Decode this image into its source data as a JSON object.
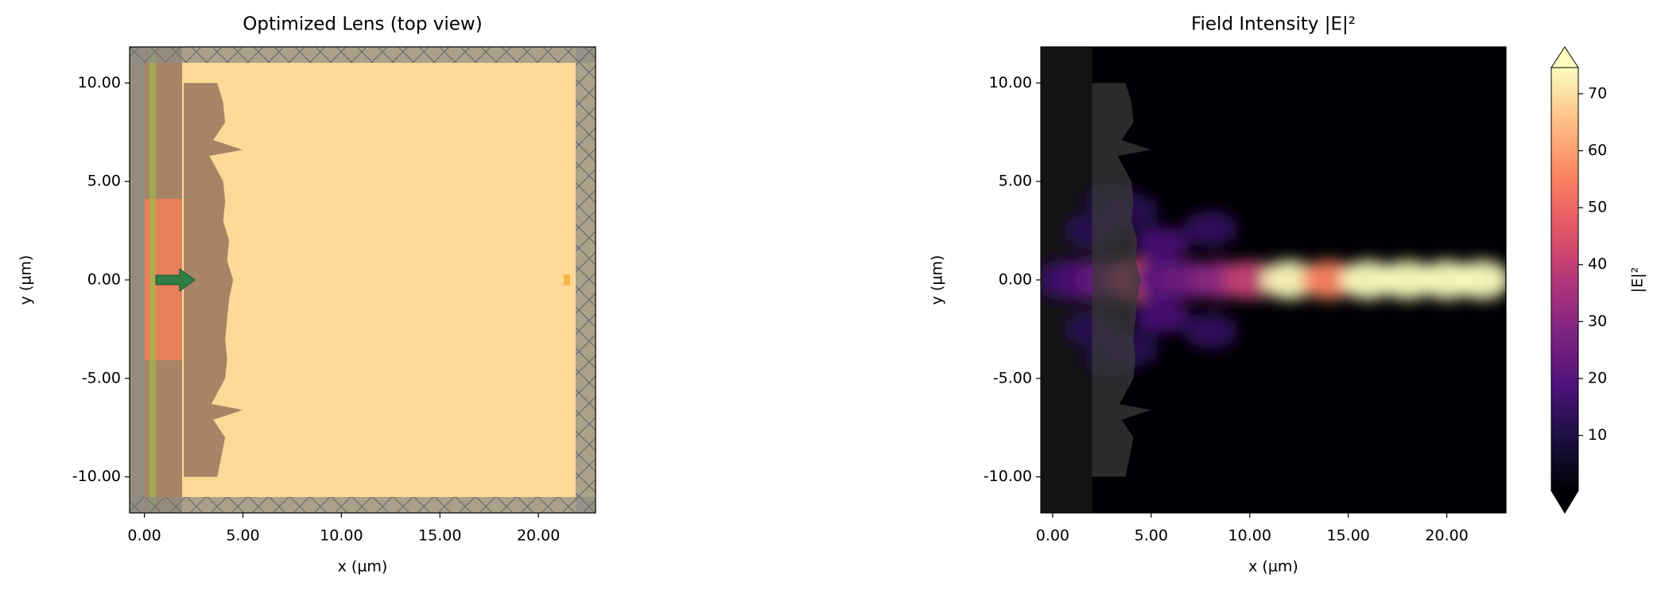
{
  "chart_data": [
    {
      "type": "layout",
      "title": "Optimized Lens (top view)",
      "xlabel": "x (µm)",
      "ylabel": "y (µm)",
      "xlim": [
        -0.75,
        22.9
      ],
      "ylim": [
        -11.83,
        11.83
      ],
      "xticks": [
        {
          "value": 0,
          "label": "0.00"
        },
        {
          "value": 5,
          "label": "5.00"
        },
        {
          "value": 10,
          "label": "10.00"
        },
        {
          "value": 15,
          "label": "15.00"
        },
        {
          "value": 20,
          "label": "20.00"
        }
      ],
      "yticks": [
        {
          "value": -10,
          "label": "-10.00"
        },
        {
          "value": -5,
          "label": "-5.00"
        },
        {
          "value": 0,
          "label": "0.00"
        },
        {
          "value": 5,
          "label": "5.00"
        },
        {
          "value": 10,
          "label": "10.00"
        }
      ]
    },
    {
      "type": "heatmap",
      "title": "Field Intensity |E|²",
      "xlabel": "x (µm)",
      "ylabel": "y (µm)",
      "xlim": [
        -0.6,
        23.0
      ],
      "ylim": [
        -11.83,
        11.83
      ],
      "xticks": [
        {
          "value": 0,
          "label": "0.00"
        },
        {
          "value": 5,
          "label": "5.00"
        },
        {
          "value": 10,
          "label": "10.00"
        },
        {
          "value": 15,
          "label": "15.00"
        },
        {
          "value": 20,
          "label": "20.00"
        }
      ],
      "yticks": [
        {
          "value": -10,
          "label": "-10.00"
        },
        {
          "value": -5,
          "label": "-5.00"
        },
        {
          "value": 0,
          "label": "0.00"
        },
        {
          "value": 5,
          "label": "5.00"
        },
        {
          "value": 10,
          "label": "10.00"
        }
      ],
      "x": [
        0.5,
        1.5,
        2.5,
        3.5,
        4.3,
        5.5,
        7,
        8.5,
        10,
        12,
        14,
        16,
        18,
        20,
        21.8,
        2,
        2,
        3,
        3,
        5.5,
        5.5,
        8,
        8,
        4,
        4
      ],
      "y": [
        0,
        0,
        0,
        0,
        0,
        0,
        0,
        0,
        0,
        0,
        0,
        0,
        0,
        0,
        0,
        2.5,
        -2.5,
        4,
        -4,
        1.8,
        -1.8,
        2.6,
        -2.6,
        3.5,
        -3.5
      ],
      "values": [
        14,
        18,
        22,
        28,
        45,
        20,
        25,
        30,
        40,
        74,
        55,
        76,
        76,
        76,
        76,
        12,
        12,
        10,
        10,
        18,
        18,
        14,
        14,
        12,
        12
      ],
      "colorbar_label": "|E|²",
      "clim": [
        0.3,
        74.6
      ],
      "cticks": [
        10,
        20,
        30,
        40,
        50,
        60,
        70
      ]
    }
  ]
}
